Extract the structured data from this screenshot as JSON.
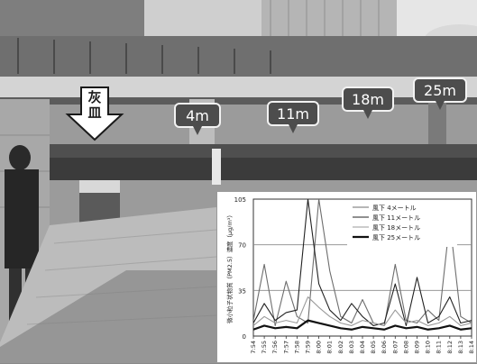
{
  "callouts": [
    "4m",
    "11m",
    "18m",
    "25m"
  ],
  "ashtray_label": [
    "灰",
    "皿"
  ],
  "chart_data": {
    "type": "line",
    "ylabel": "微小粒子状物質（PM2.5）濃度（μg/m³）",
    "xlabel": "",
    "ylim": [
      0,
      105
    ],
    "yticks": [
      0,
      35,
      70,
      105
    ],
    "grid": true,
    "legend_position": "top-right",
    "categories": [
      "7:54",
      "7:55",
      "7:56",
      "7:57",
      "7:58",
      "7:59",
      "8:00",
      "8:01",
      "8:02",
      "8:03",
      "8:04",
      "8:05",
      "8:06",
      "8:07",
      "8:08",
      "8:09",
      "8:10",
      "8:11",
      "8:12",
      "8:13",
      "8:14"
    ],
    "series": [
      {
        "name": "風下 4メートル",
        "color": "#6e6e6e",
        "width": 1.1,
        "values": [
          12,
          55,
          8,
          42,
          15,
          10,
          105,
          50,
          15,
          10,
          28,
          10,
          8,
          55,
          12,
          10,
          20,
          12,
          88,
          15,
          10
        ]
      },
      {
        "name": "風下 11メートル",
        "color": "#222222",
        "width": 1.1,
        "values": [
          10,
          25,
          12,
          18,
          20,
          105,
          40,
          20,
          12,
          25,
          15,
          8,
          10,
          40,
          8,
          45,
          10,
          15,
          30,
          10,
          12
        ]
      },
      {
        "name": "風下 18メートル",
        "color": "#9a9a9a",
        "width": 1.1,
        "values": [
          8,
          15,
          10,
          12,
          10,
          30,
          22,
          15,
          10,
          8,
          12,
          10,
          8,
          20,
          10,
          12,
          8,
          10,
          15,
          8,
          10
        ]
      },
      {
        "name": "風下 25メートル",
        "color": "#111111",
        "width": 2.2,
        "values": [
          5,
          8,
          6,
          7,
          6,
          12,
          10,
          8,
          6,
          5,
          7,
          6,
          5,
          8,
          6,
          7,
          5,
          6,
          8,
          5,
          6
        ]
      }
    ]
  }
}
